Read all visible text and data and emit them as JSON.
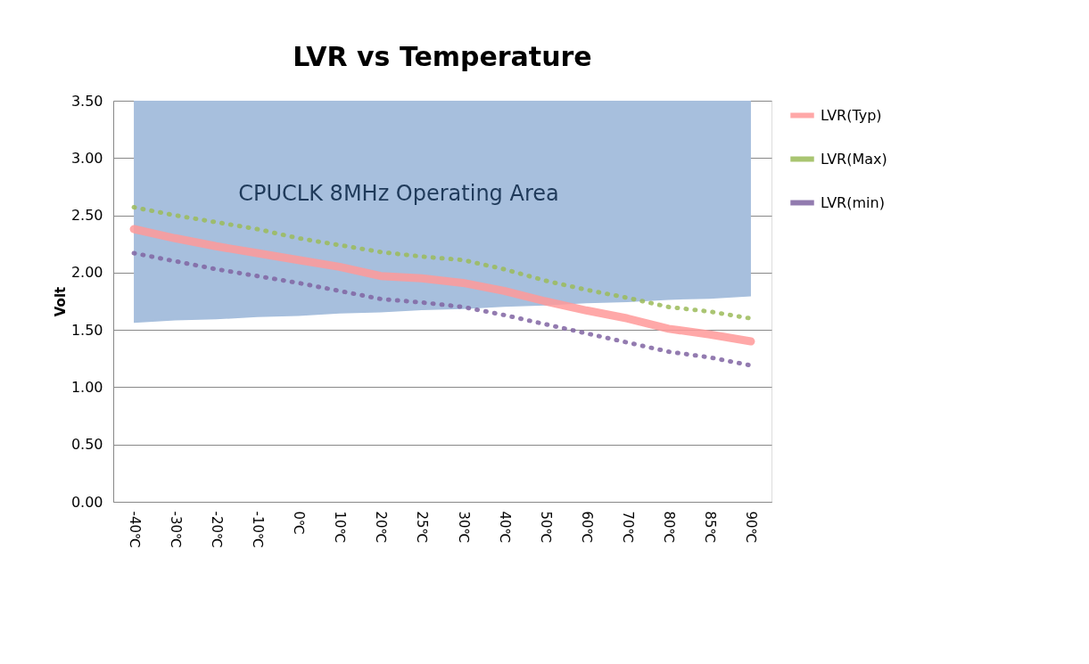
{
  "chart_data": {
    "type": "line",
    "title": "LVR vs Temperature",
    "ylabel": "Volt",
    "categories": [
      "-40℃",
      "-30℃",
      "-20℃",
      "-10℃",
      "0℃",
      "10℃",
      "20℃",
      "25℃",
      "30℃",
      "40℃",
      "50℃",
      "60℃",
      "70℃",
      "80℃",
      "85℃",
      "90℃"
    ],
    "series": [
      {
        "type": "line",
        "color": "#a7bfdd",
        "values": [
          1.57,
          1.59,
          1.6,
          1.62,
          1.63,
          1.65,
          1.66,
          1.68,
          1.69,
          1.71,
          1.72,
          1.74,
          1.75,
          1.77,
          1.78,
          1.8
        ],
        "upper": [
          3.5,
          3.5,
          3.5,
          3.5,
          3.5,
          3.5,
          3.5,
          3.5,
          3.5,
          3.5,
          3.5,
          3.5,
          3.5,
          3.5,
          3.5,
          3.5
        ],
        "lower": [
          1.57,
          1.59,
          1.6,
          1.62,
          1.63,
          1.65,
          1.66,
          1.68,
          1.69,
          1.71,
          1.72,
          1.74,
          1.75,
          1.77,
          1.78,
          1.8
        ]
      },
      {
        "name": "LVR(Typ)",
        "color": "#ff9999",
        "line_style": "solid",
        "values": [
          2.38,
          2.3,
          2.23,
          2.17,
          2.11,
          2.05,
          1.97,
          1.95,
          1.91,
          1.84,
          1.75,
          1.67,
          1.6,
          1.51,
          1.46,
          1.4
        ]
      },
      {
        "name": "LVR(Max)",
        "color": "#9bbb59",
        "line_style": "dotted",
        "values": [
          2.57,
          2.5,
          2.44,
          2.38,
          2.3,
          2.24,
          2.18,
          2.14,
          2.11,
          2.03,
          1.93,
          1.85,
          1.78,
          1.7,
          1.66,
          1.6
        ]
      },
      {
        "name": "LVR(min)",
        "color": "#8064a2",
        "line_style": "dotted",
        "values": [
          2.17,
          2.1,
          2.03,
          1.97,
          1.91,
          1.84,
          1.77,
          1.74,
          1.7,
          1.63,
          1.55,
          1.47,
          1.39,
          1.31,
          1.26,
          1.19
        ]
      }
    ],
    "ylim": [
      0,
      3.5
    ],
    "yticks": [
      {
        "value": 0,
        "label": "0.00"
      },
      {
        "value": 0.5,
        "label": "0.50"
      },
      {
        "value": 1,
        "label": "1.00"
      },
      {
        "value": 1.5,
        "label": "1.50"
      },
      {
        "value": 2,
        "label": "2.00"
      },
      {
        "value": 2.5,
        "label": "2.50"
      },
      {
        "value": 3,
        "label": "3.00"
      },
      {
        "value": 3.5,
        "label": "3.50"
      }
    ],
    "grid": "y",
    "legend": "right",
    "annotations": [
      "CPUCLK 8MHz Operating Area"
    ]
  }
}
